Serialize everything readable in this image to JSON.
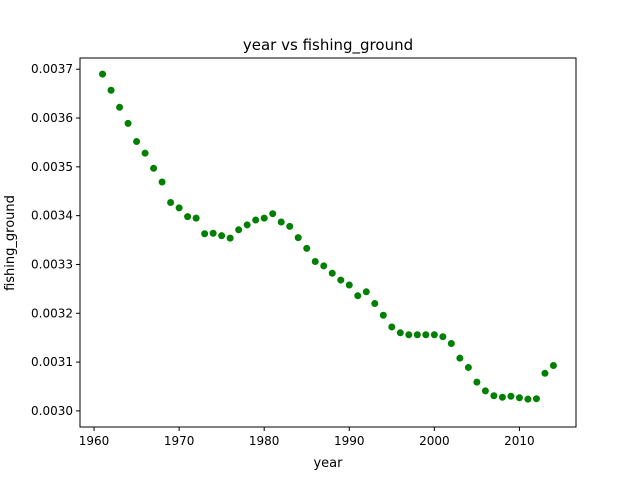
{
  "chart_data": {
    "type": "scatter",
    "title": "year vs fishing_ground",
    "xlabel": "year",
    "ylabel": "fishing_ground",
    "xlim": [
      1958.35,
      2016.65
    ],
    "ylim": [
      0.002967,
      0.003723
    ],
    "xticks": [
      1960,
      1970,
      1980,
      1990,
      2000,
      2010
    ],
    "xtick_labels": [
      "1960",
      "1970",
      "1980",
      "1990",
      "2000",
      "2010"
    ],
    "yticks": [
      0.003,
      0.0031,
      0.0032,
      0.0033,
      0.0034,
      0.0035,
      0.0036,
      0.0037
    ],
    "ytick_labels": [
      "0.0030",
      "0.0031",
      "0.0032",
      "0.0033",
      "0.0034",
      "0.0035",
      "0.0036",
      "0.0037"
    ],
    "grid": false,
    "marker_color": "#008000",
    "x": [
      1961,
      1962,
      1963,
      1964,
      1965,
      1966,
      1967,
      1968,
      1969,
      1970,
      1971,
      1972,
      1973,
      1974,
      1975,
      1976,
      1977,
      1978,
      1979,
      1980,
      1981,
      1982,
      1983,
      1984,
      1985,
      1986,
      1987,
      1988,
      1989,
      1990,
      1991,
      1992,
      1993,
      1994,
      1995,
      1996,
      1997,
      1998,
      1999,
      2000,
      2001,
      2002,
      2003,
      2004,
      2005,
      2006,
      2007,
      2008,
      2009,
      2010,
      2011,
      2012,
      2013,
      2014
    ],
    "y": [
      0.00369,
      0.003657,
      0.003622,
      0.003589,
      0.003552,
      0.003528,
      0.003497,
      0.003469,
      0.003427,
      0.003416,
      0.003398,
      0.003395,
      0.003363,
      0.003364,
      0.003359,
      0.003354,
      0.003371,
      0.003381,
      0.003391,
      0.003395,
      0.003404,
      0.003387,
      0.003378,
      0.003355,
      0.003333,
      0.003306,
      0.003297,
      0.003282,
      0.003268,
      0.003258,
      0.003236,
      0.003244,
      0.00322,
      0.003196,
      0.003172,
      0.00316,
      0.003156,
      0.003156,
      0.003156,
      0.003156,
      0.003152,
      0.003138,
      0.003108,
      0.003089,
      0.003059,
      0.003041,
      0.003031,
      0.003028,
      0.00303,
      0.003027,
      0.003024,
      0.003025,
      0.003077,
      0.003093
    ]
  }
}
